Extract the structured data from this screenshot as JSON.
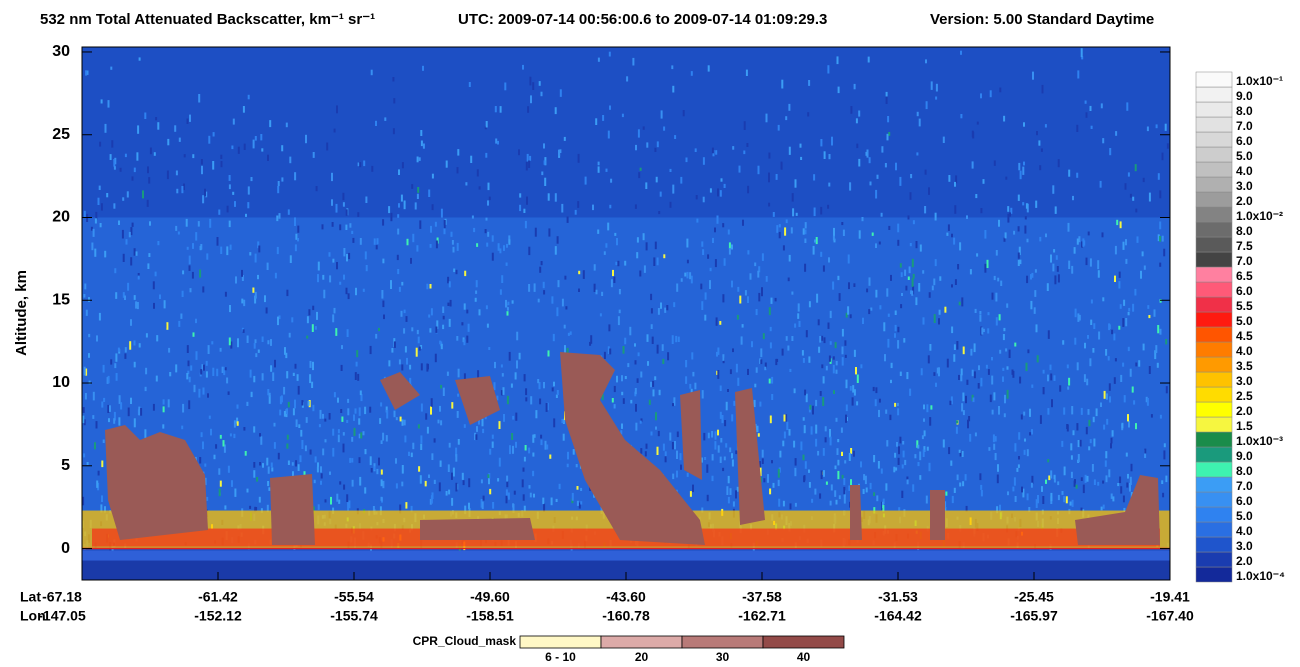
{
  "chart_data": {
    "type": "curtain",
    "title": "532 nm Total Attenuated Backscatter, km⁻¹ sr⁻¹",
    "utc": "UTC:  2009-07-14 00:56:00.6  to  2009-07-14 01:09:29.3",
    "version": "Version: 5.00  Standard  Daytime",
    "ylabel": "Altitude, km",
    "ylim": [
      -1.9,
      30.3
    ],
    "yticks": [
      0,
      5,
      10,
      15,
      20,
      25,
      30
    ],
    "x_row_labels": [
      "Lat",
      "Lon"
    ],
    "lat_labels": [
      "-67.18",
      "-61.42",
      "-55.54",
      "-49.60",
      "-43.60",
      "-37.58",
      "-31.53",
      "-25.45",
      "-19.41"
    ],
    "lon_labels": [
      "-147.05",
      "-152.12",
      "-155.74",
      "-158.51",
      "-160.78",
      "-162.71",
      "-164.42",
      "-165.97",
      "-167.40"
    ],
    "colorbar": [
      {
        "value": 0.0001,
        "label": "1.0x10⁻⁴",
        "color": "#13299a"
      },
      {
        "value": 0.0002,
        "label": "2.0",
        "color": "#1a3cb0"
      },
      {
        "value": 0.0003,
        "label": "3.0",
        "color": "#1f55cc"
      },
      {
        "value": 0.0004,
        "label": "4.0",
        "color": "#2a6fe2"
      },
      {
        "value": 0.0005,
        "label": "5.0",
        "color": "#2f82f0"
      },
      {
        "value": 0.0006,
        "label": "6.0",
        "color": "#3890f2"
      },
      {
        "value": 0.0007,
        "label": "7.0",
        "color": "#3b9df5"
      },
      {
        "value": 0.0008,
        "label": "8.0",
        "color": "#3ef2b0"
      },
      {
        "value": 0.0009,
        "label": "9.0",
        "color": "#1a9a7c"
      },
      {
        "value": 0.001,
        "label": "1.0x10⁻³",
        "color": "#1a8c4a"
      },
      {
        "value": 0.0015,
        "label": "1.5",
        "color": "#f6f640"
      },
      {
        "value": 0.002,
        "label": "2.0",
        "color": "#ffff00"
      },
      {
        "value": 0.0025,
        "label": "2.5",
        "color": "#ffdc00"
      },
      {
        "value": 0.003,
        "label": "3.0",
        "color": "#ffc200"
      },
      {
        "value": 0.0035,
        "label": "3.5",
        "color": "#ff9a00"
      },
      {
        "value": 0.004,
        "label": "4.0",
        "color": "#ff7c00"
      },
      {
        "value": 0.0045,
        "label": "4.5",
        "color": "#ff5500"
      },
      {
        "value": 0.005,
        "label": "5.0",
        "color": "#ff1a10"
      },
      {
        "value": 0.0055,
        "label": "5.5",
        "color": "#f03048"
      },
      {
        "value": 0.006,
        "label": "6.0",
        "color": "#ff5a78"
      },
      {
        "value": 0.0065,
        "label": "6.5",
        "color": "#ff80a0"
      },
      {
        "value": 0.007,
        "label": "7.0",
        "color": "#444444"
      },
      {
        "value": 0.0075,
        "label": "7.5",
        "color": "#5a5a5a"
      },
      {
        "value": 0.008,
        "label": "8.0",
        "color": "#6c6c6c"
      },
      {
        "value": 0.01,
        "label": "1.0x10⁻²",
        "color": "#838383"
      },
      {
        "value": 0.02,
        "label": "2.0",
        "color": "#9c9c9c"
      },
      {
        "value": 0.03,
        "label": "3.0",
        "color": "#b0b0b0"
      },
      {
        "value": 0.04,
        "label": "4.0",
        "color": "#c0c0c0"
      },
      {
        "value": 0.05,
        "label": "5.0",
        "color": "#cdcdcd"
      },
      {
        "value": 0.06,
        "label": "6.0",
        "color": "#d8d8d8"
      },
      {
        "value": 0.07,
        "label": "7.0",
        "color": "#e2e2e2"
      },
      {
        "value": 0.08,
        "label": "8.0",
        "color": "#eaeaea"
      },
      {
        "value": 0.09,
        "label": "9.0",
        "color": "#f2f2f2"
      },
      {
        "value": 0.1,
        "label": "1.0x10⁻¹",
        "color": "#fafafa"
      }
    ],
    "cloud_mask": {
      "title": "CPR_Cloud_mask",
      "labels": [
        "6 - 10",
        "20",
        "30",
        "40"
      ],
      "colors": [
        "#fff8c6",
        "#dcaaa8",
        "#b87a78",
        "#934a48"
      ]
    }
  }
}
